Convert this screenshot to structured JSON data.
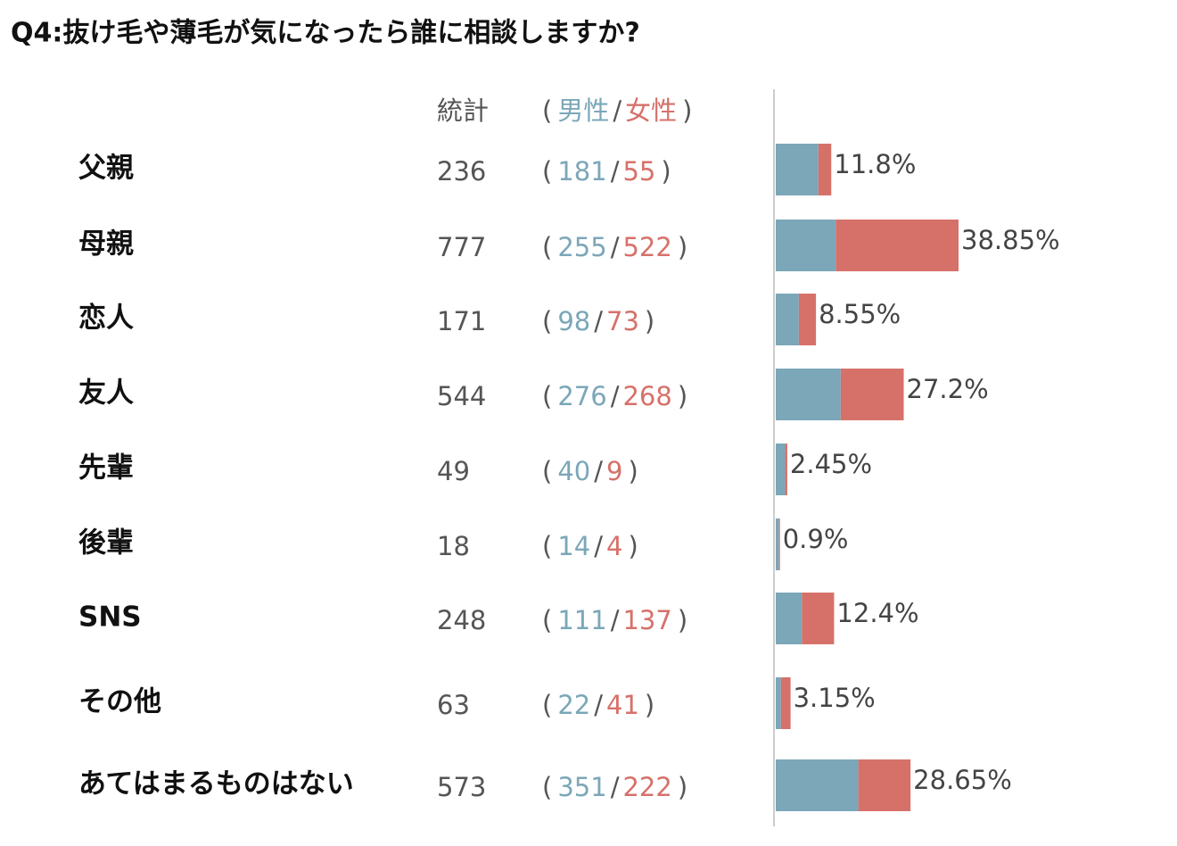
{
  "chart_data": {
    "type": "bar",
    "orientation": "horizontal",
    "stacked": true,
    "title": "Q4:抜け毛や薄毛が気になったら誰に相談しますか?",
    "total_label": "統計",
    "open": "(",
    "separator": "/",
    "close": ")",
    "categories": [
      "父親",
      "母親",
      "恋人",
      "友人",
      "先輩",
      "後輩",
      "SNS",
      "その他",
      "あてはまるものはない"
    ],
    "totals": [
      236,
      777,
      171,
      544,
      49,
      18,
      248,
      63,
      573
    ],
    "series": [
      {
        "name": "男性",
        "color": "#7ba7b8",
        "values": [
          181,
          255,
          98,
          276,
          40,
          14,
          111,
          22,
          351
        ]
      },
      {
        "name": "女性",
        "color": "#d6716a",
        "values": [
          55,
          522,
          73,
          268,
          9,
          4,
          137,
          41,
          222
        ]
      }
    ],
    "percentages": {
      "values": [
        11.8,
        38.85,
        8.55,
        27.2,
        2.45,
        0.9,
        12.4,
        3.15,
        28.65
      ],
      "value_labels": [
        "11.8%",
        "38.85%",
        "8.55%",
        "27.2%",
        "2.45%",
        "0.9%",
        "12.4%",
        "3.15%",
        "28.65%"
      ]
    }
  }
}
